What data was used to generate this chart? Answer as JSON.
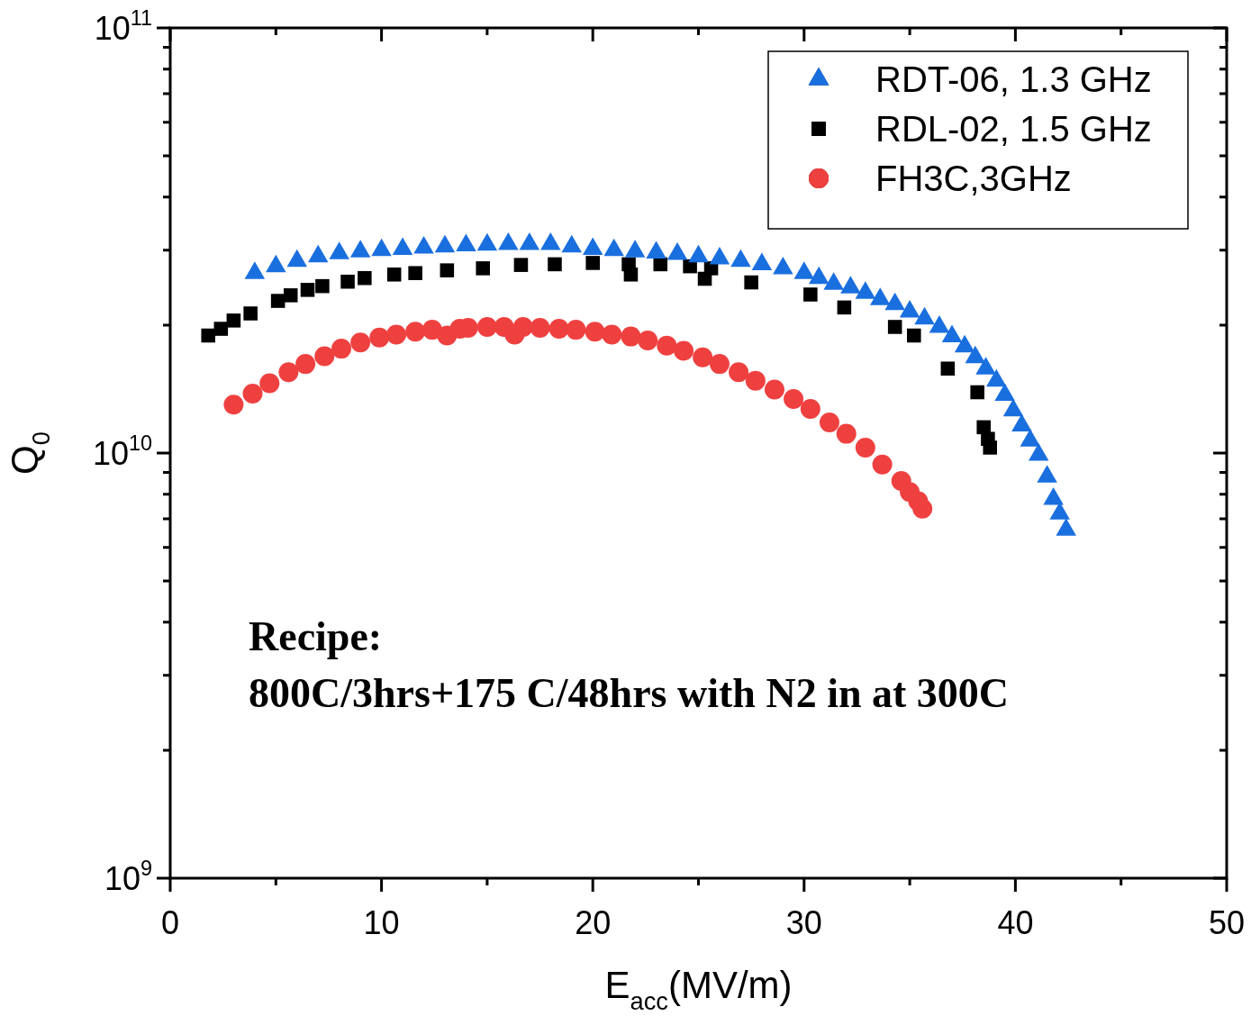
{
  "chart_data": {
    "type": "scatter",
    "xlabel": "E$_{acc}$(MV/m)",
    "ylabel": "Q$_{0}$",
    "log": "y",
    "grid": false,
    "legend": "top right",
    "xlim": [
      0,
      50
    ],
    "ylim": [
      1000000000.0,
      100000000000.0
    ],
    "xticks": [
      0,
      {
        "value": 5,
        "label": null
      },
      10,
      {
        "value": 15,
        "label": null
      },
      20,
      {
        "value": 25,
        "label": null
      },
      30,
      {
        "value": 35,
        "label": null
      },
      40,
      {
        "value": 45,
        "label": null
      },
      50
    ],
    "yticks": [
      {
        "value": 1000000000.0,
        "label": "10$^{9}$"
      },
      {
        "value": 2000000000.0,
        "label": null
      },
      {
        "value": 3000000000.0,
        "label": null
      },
      {
        "value": 4000000000.0,
        "label": null
      },
      {
        "value": 5000000000.0,
        "label": null
      },
      {
        "value": 6000000000.0,
        "label": null
      },
      {
        "value": 7000000000.0,
        "label": null
      },
      {
        "value": 8000000000.0,
        "label": null
      },
      {
        "value": 9000000000.0,
        "label": null
      },
      {
        "value": 10000000000.0,
        "label": "10$^{10}$"
      },
      {
        "value": 20000000000.0,
        "label": null
      },
      {
        "value": 30000000000.0,
        "label": null
      },
      {
        "value": 40000000000.0,
        "label": null
      },
      {
        "value": 50000000000.0,
        "label": null
      },
      {
        "value": 60000000000.0,
        "label": null
      },
      {
        "value": 70000000000.0,
        "label": null
      },
      {
        "value": 80000000000.0,
        "label": null
      },
      {
        "value": 90000000000.0,
        "label": null
      },
      {
        "value": 100000000000.0,
        "label": "10$^{11}$"
      }
    ],
    "annotations": [
      "Recipe:",
      "800C/3hrs+175 C/48hrs with N2 in at 300C"
    ],
    "series": [
      {
        "name": "RDT-06, 1.3 GHz",
        "color": "#1a6fdf",
        "marker": "triangle",
        "x": [
          4,
          5,
          6,
          7,
          8,
          9,
          10,
          11,
          12,
          13,
          14,
          15,
          16,
          17,
          18,
          19,
          20,
          21,
          22,
          23,
          24,
          25,
          26,
          27,
          28,
          29,
          30,
          30.7,
          31.4,
          32.2,
          32.9,
          33.6,
          34.3,
          35,
          35.7,
          36.4,
          37,
          37.6,
          38.1,
          38.6,
          39.1,
          39.5,
          39.9,
          40.3,
          40.7,
          41.1,
          41.5,
          41.8,
          42.1,
          42.4
        ],
        "values": [
          26500000000.0,
          27500000000.0,
          28300000000.0,
          29000000000.0,
          29500000000.0,
          29800000000.0,
          30000000000.0,
          30200000000.0,
          30400000000.0,
          30600000000.0,
          30800000000.0,
          30900000000.0,
          31000000000.0,
          31000000000.0,
          31000000000.0,
          30600000000.0,
          30200000000.0,
          30000000000.0,
          29800000000.0,
          29600000000.0,
          29400000000.0,
          29000000000.0,
          28700000000.0,
          28300000000.0,
          27800000000.0,
          27200000000.0,
          26500000000.0,
          25800000000.0,
          25000000000.0,
          24500000000.0,
          23800000000.0,
          23000000000.0,
          22400000000.0,
          21500000000.0,
          20700000000.0,
          19800000000.0,
          18800000000.0,
          17800000000.0,
          16800000000.0,
          15800000000.0,
          14800000000.0,
          13700000000.0,
          12600000000.0,
          11600000000.0,
          10700000000.0,
          9900000000.0,
          8800000000.0,
          7800000000.0,
          7200000000.0,
          6600000000.0
        ]
      },
      {
        "name": "RDL-02, 1.5 GHz",
        "color": "#000000",
        "marker": "square",
        "x": [
          1.8,
          2.4,
          3,
          3.8,
          5.1,
          5.7,
          6.5,
          7.2,
          8.4,
          9.2,
          10.6,
          11.6,
          13.1,
          14.8,
          16.6,
          18.2,
          20,
          21.7,
          21.8,
          23.2,
          24.6,
          25.3,
          25.6,
          27.5,
          30.3,
          31.9,
          34.3,
          35.2,
          36.8,
          38.2,
          38.5,
          38.7,
          38.8
        ],
        "values": [
          18900000000.0,
          19600000000.0,
          20500000000.0,
          21300000000.0,
          22800000000.0,
          23500000000.0,
          24200000000.0,
          24700000000.0,
          25300000000.0,
          25800000000.0,
          26300000000.0,
          26500000000.0,
          26900000000.0,
          27200000000.0,
          27700000000.0,
          27800000000.0,
          28000000000.0,
          27800000000.0,
          26300000000.0,
          27800000000.0,
          27500000000.0,
          25700000000.0,
          27200000000.0,
          25200000000.0,
          23600000000.0,
          22000000000.0,
          19800000000.0,
          18900000000.0,
          15800000000.0,
          13900000000.0,
          11500000000.0,
          10800000000.0,
          10300000000.0
        ]
      },
      {
        "name": "FH3C,3GHz",
        "color": "#ef4040",
        "marker": "circle",
        "x": [
          3,
          3.9,
          4.7,
          5.6,
          6.4,
          7.3,
          8.1,
          9,
          9.9,
          10.7,
          11.6,
          12.4,
          13.1,
          13.7,
          14.1,
          15,
          15.8,
          16.3,
          16.7,
          17.5,
          18.4,
          19.2,
          20.1,
          20.9,
          21.8,
          22.6,
          23.5,
          24.3,
          25.2,
          26,
          26.9,
          27.7,
          28.6,
          29.5,
          30.3,
          31.2,
          32,
          32.9,
          33.7,
          34.6,
          35,
          35.4,
          35.6
        ],
        "values": [
          13000000000.0,
          13800000000.0,
          14600000000.0,
          15500000000.0,
          16200000000.0,
          16900000000.0,
          17600000000.0,
          18200000000.0,
          18700000000.0,
          19000000000.0,
          19300000000.0,
          19500000000.0,
          18900000000.0,
          19600000000.0,
          19700000000.0,
          19800000000.0,
          19800000000.0,
          19000000000.0,
          19800000000.0,
          19700000000.0,
          19600000000.0,
          19500000000.0,
          19300000000.0,
          19000000000.0,
          18800000000.0,
          18400000000.0,
          17900000000.0,
          17400000000.0,
          16800000000.0,
          16200000000.0,
          15500000000.0,
          14800000000.0,
          14100000000.0,
          13400000000.0,
          12700000000.0,
          11800000000.0,
          11100000000.0,
          10300000000.0,
          9400000000.0,
          8600000000.0,
          8100000000.0,
          7700000000.0,
          7400000000.0
        ]
      }
    ]
  }
}
